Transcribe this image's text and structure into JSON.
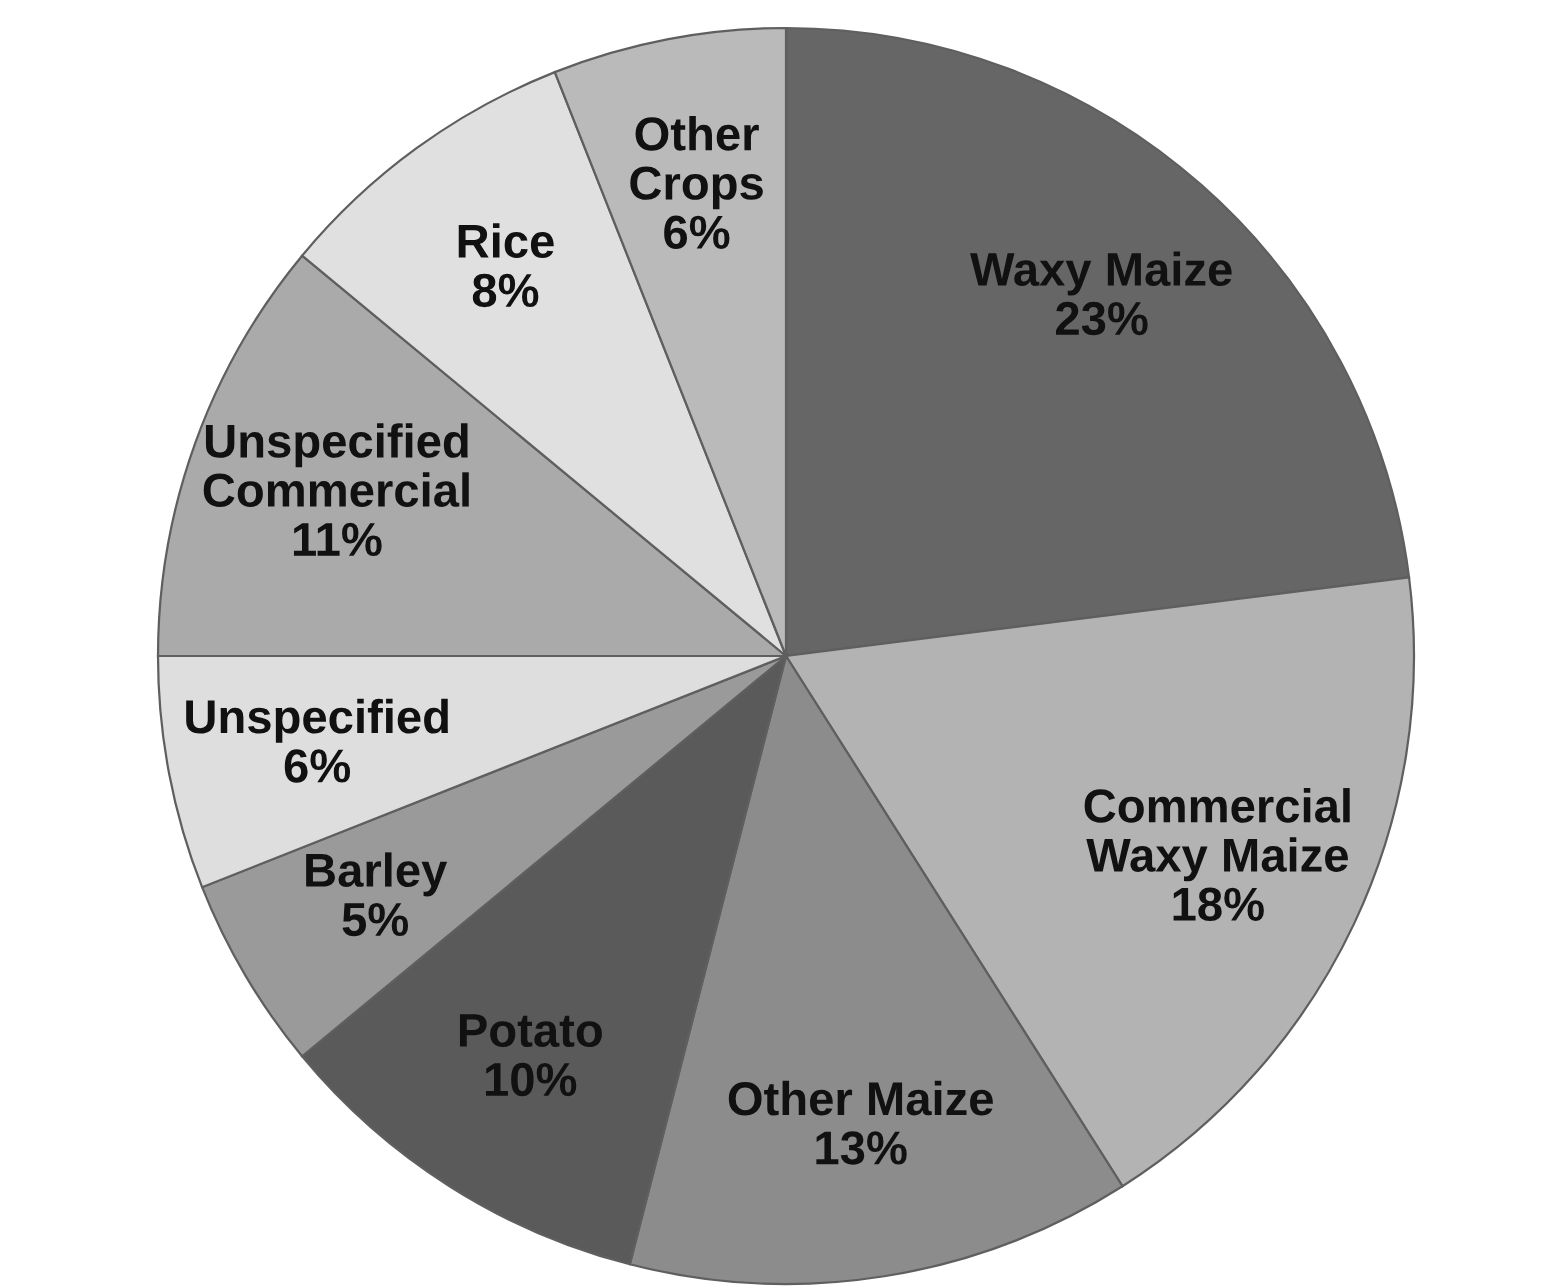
{
  "chart_data": {
    "type": "pie",
    "categories": [
      "Waxy Maize",
      "Commercial\nWaxy Maize",
      "Other Maize",
      "Potato",
      "Barley",
      "Unspecified",
      "Unspecified\nCommercial",
      "Rice",
      "Other\nCrops"
    ],
    "values": [
      23,
      18,
      13,
      10,
      5,
      6,
      11,
      8,
      6
    ],
    "value_labels": [
      "23%",
      "18%",
      "13%",
      "10%",
      "5%",
      "6%",
      "11%",
      "8%",
      "6%"
    ],
    "colors": [
      "#666666",
      "#b3b3b3",
      "#8c8c8c",
      "#5a5a5a",
      "#9a9a9a",
      "#dedede",
      "#aaaaaa",
      "#e0e0e0",
      "#bababa"
    ]
  }
}
